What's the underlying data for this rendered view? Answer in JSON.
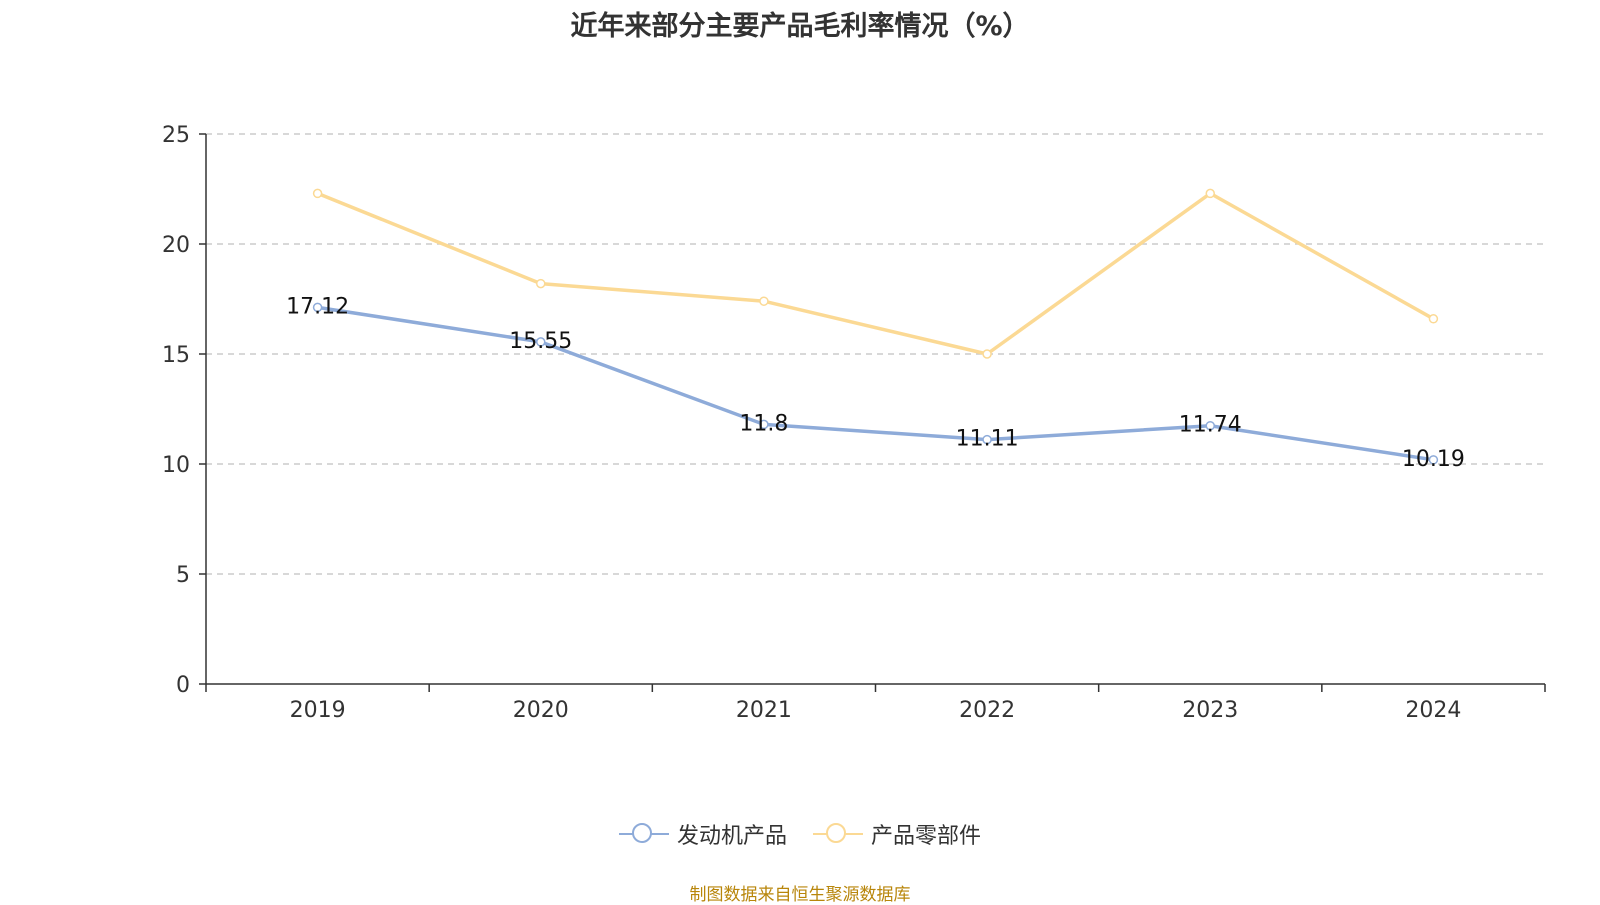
{
  "colors": {
    "series1": "#8eabd9",
    "series2": "#fbd994",
    "axis": "#333333",
    "grid": "#cccccc",
    "source": "#b8860b"
  },
  "chart_data": {
    "type": "line",
    "title": "近年来部分主要产品毛利率情况（%）",
    "categories": [
      "2019",
      "2020",
      "2021",
      "2022",
      "2023",
      "2024"
    ],
    "series": [
      {
        "name": "发动机产品",
        "values": [
          17.12,
          15.55,
          11.8,
          11.11,
          11.74,
          10.19
        ],
        "labels": [
          "17.12",
          "15.55",
          "11.8",
          "11.11",
          "11.74",
          "10.19"
        ]
      },
      {
        "name": "产品零部件",
        "values": [
          22.3,
          18.2,
          17.4,
          15.0,
          22.3,
          16.6
        ]
      }
    ],
    "yticks": [
      "0",
      "5",
      "10",
      "15",
      "20",
      "25"
    ],
    "ylim": [
      0,
      25
    ],
    "grid": true,
    "legend": "bottom-center"
  },
  "legend": {
    "items": [
      "发动机产品",
      "产品零部件"
    ]
  },
  "source": "制图数据来自恒生聚源数据库"
}
